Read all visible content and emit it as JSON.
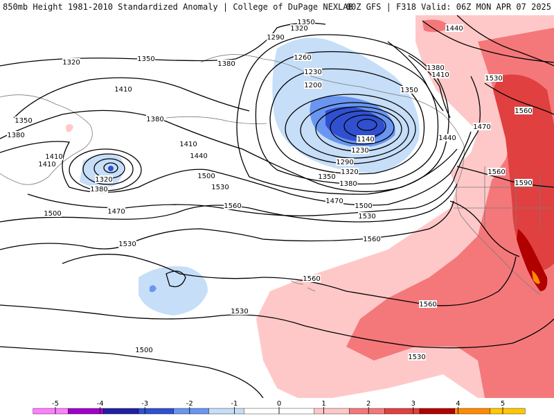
{
  "header": {
    "title_left": "850mb Height 1981-2010 Standardized Anomaly | College of DuPage NEXLAB",
    "title_right": "00Z GFS | F318 Valid: 06Z MON APR 07 2025"
  },
  "legend": {
    "ticks": [
      "-5",
      "-4",
      "-3",
      "-2",
      "-1",
      "0",
      "1",
      "2",
      "3",
      "4",
      "5"
    ],
    "colors": [
      "#ff80ff",
      "#a000c8",
      "#2020a0",
      "#3050d0",
      "#6a95f0",
      "#c6def8",
      "#ffffff",
      "#ffffff",
      "#ffc8c8",
      "#f4787a",
      "#e04040",
      "#b00000",
      "#ff8c00",
      "#ffc800"
    ]
  },
  "map": {
    "contour_labels": [
      {
        "text": "1350"
      },
      {
        "text": "1320"
      },
      {
        "text": "1290"
      },
      {
        "text": "1260"
      },
      {
        "text": "1230"
      },
      {
        "text": "1200"
      },
      {
        "text": "1140"
      },
      {
        "text": "1230"
      },
      {
        "text": "1290"
      },
      {
        "text": "1320"
      },
      {
        "text": "1350"
      },
      {
        "text": "1380"
      },
      {
        "text": "1320"
      },
      {
        "text": "1350"
      },
      {
        "text": "1380"
      },
      {
        "text": "1410"
      },
      {
        "text": "1350"
      },
      {
        "text": "1380"
      },
      {
        "text": "1410"
      },
      {
        "text": "1410"
      },
      {
        "text": "1380"
      },
      {
        "text": "1320"
      },
      {
        "text": "1380"
      },
      {
        "text": "1410"
      },
      {
        "text": "1440"
      },
      {
        "text": "1500"
      },
      {
        "text": "1530"
      },
      {
        "text": "1470"
      },
      {
        "text": "1500"
      },
      {
        "text": "1530"
      },
      {
        "text": "1470"
      },
      {
        "text": "1500"
      },
      {
        "text": "1560"
      },
      {
        "text": "1560"
      },
      {
        "text": "1530"
      },
      {
        "text": "1560"
      },
      {
        "text": "1530"
      },
      {
        "text": "1500"
      },
      {
        "text": "1560"
      },
      {
        "text": "1530"
      },
      {
        "text": "1440"
      },
      {
        "text": "1380"
      },
      {
        "text": "1410"
      },
      {
        "text": "1350"
      },
      {
        "text": "1530"
      },
      {
        "text": "1560"
      },
      {
        "text": "1470"
      },
      {
        "text": "1440"
      },
      {
        "text": "1560"
      },
      {
        "text": "1590"
      }
    ]
  }
}
